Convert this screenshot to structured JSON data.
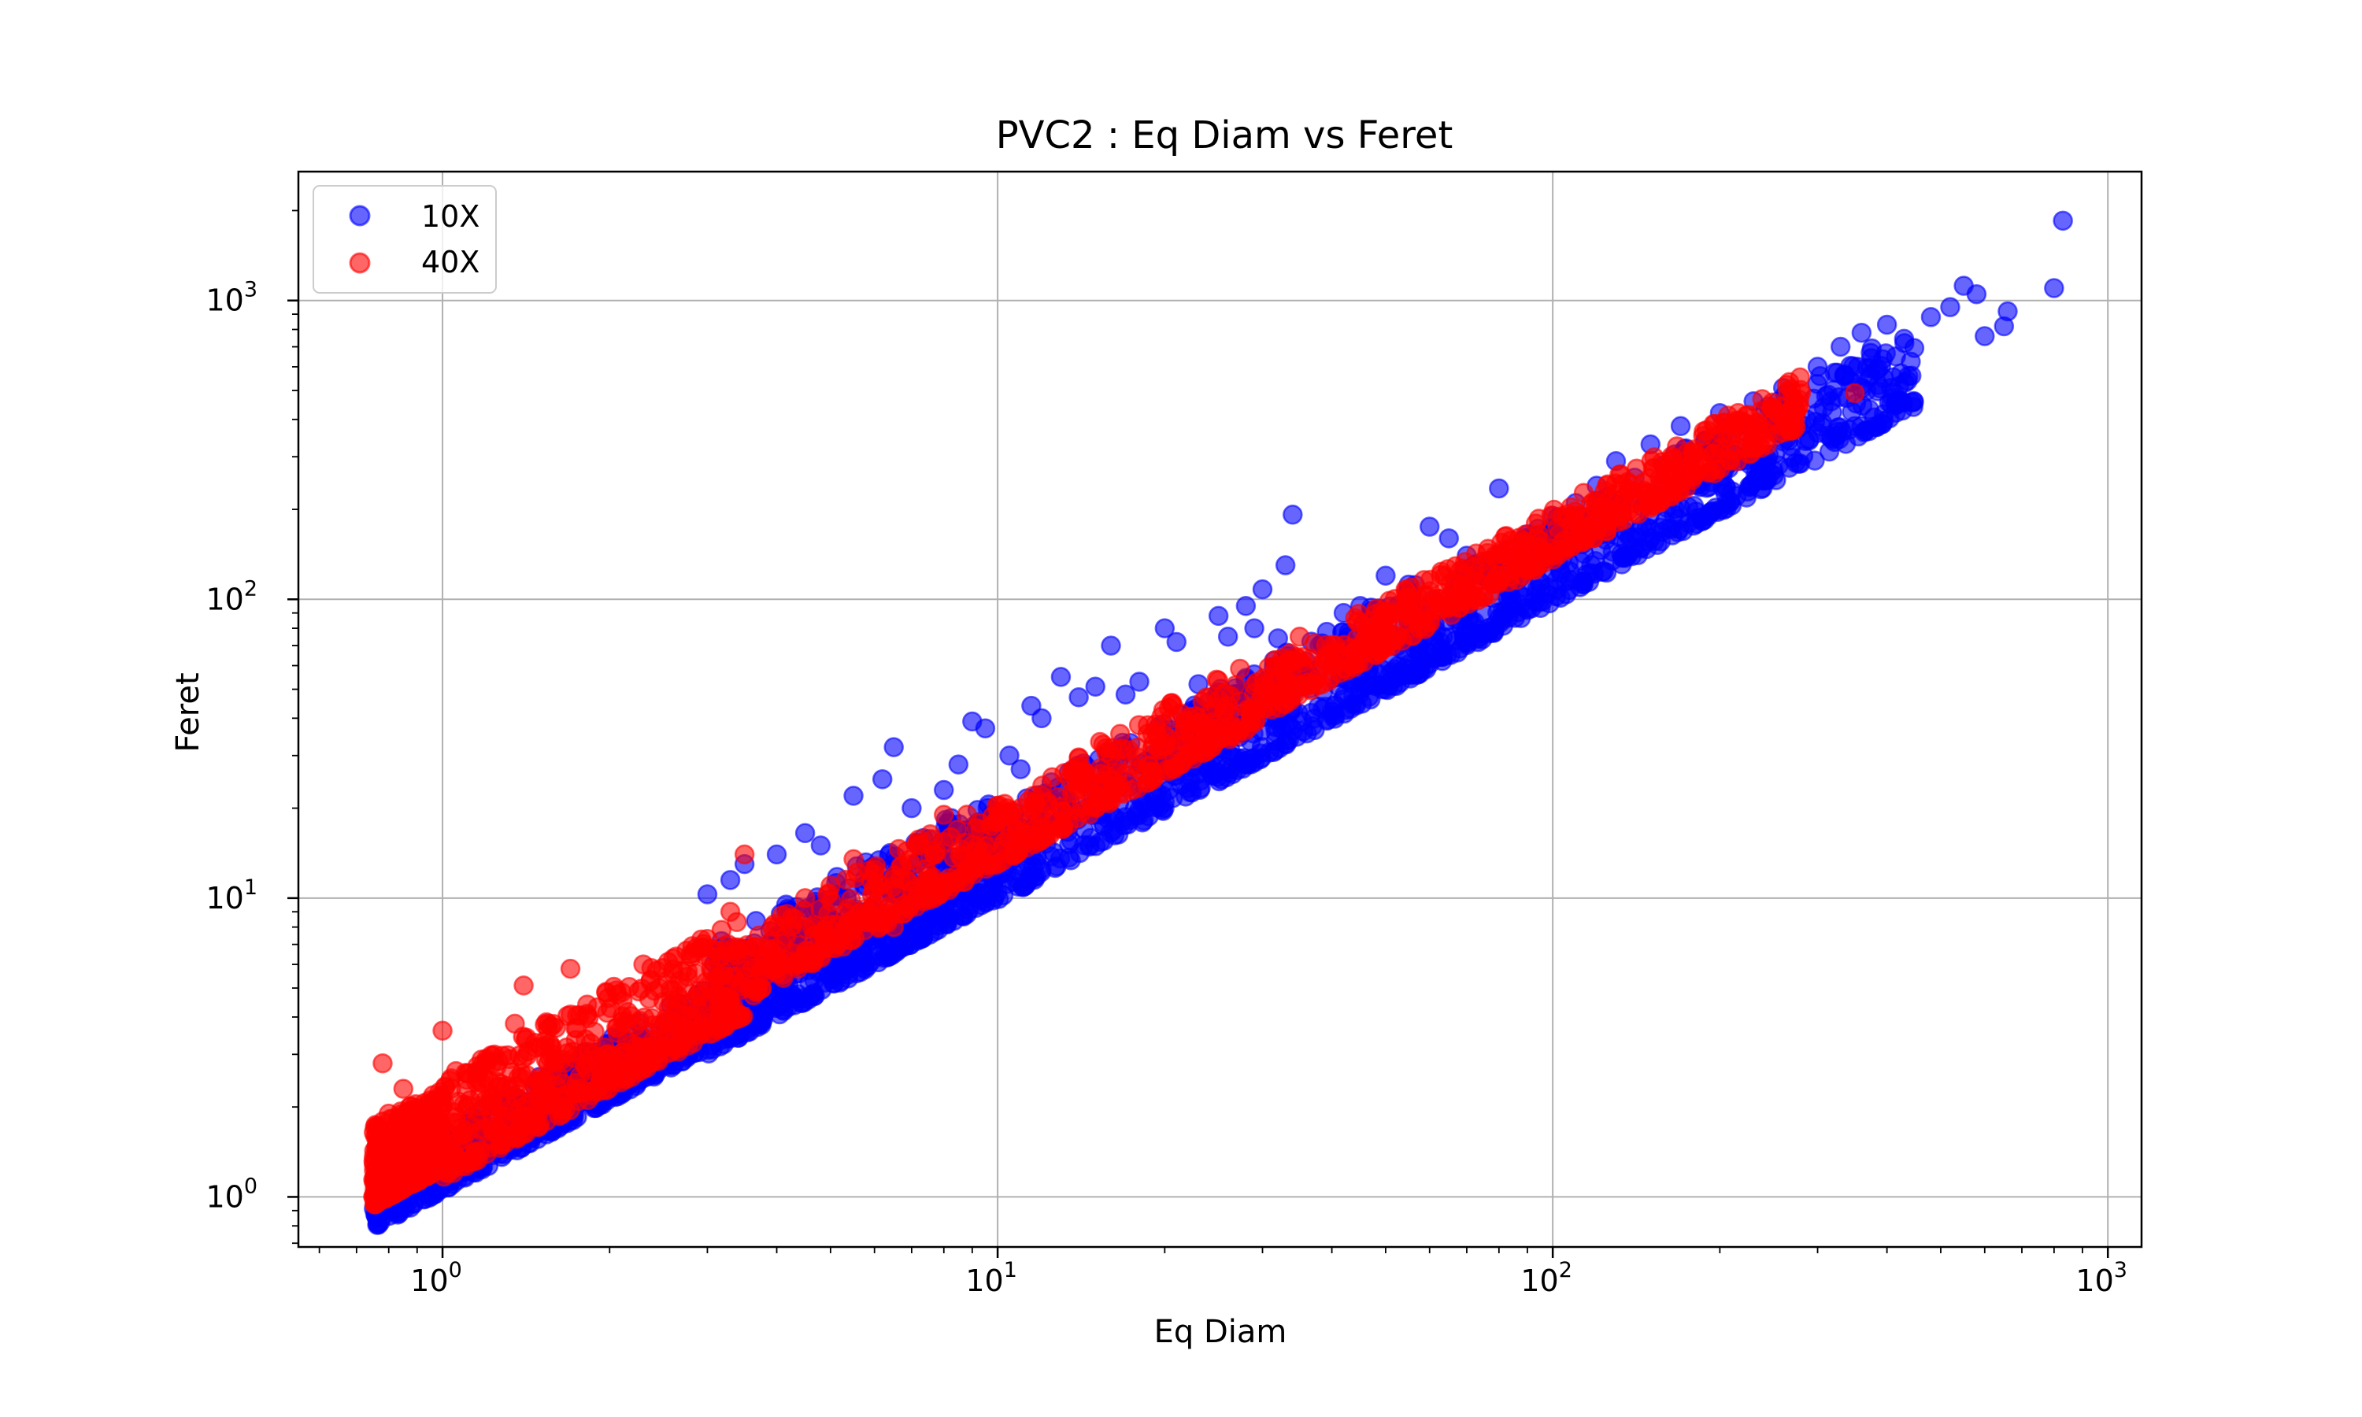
{
  "chart_data": {
    "type": "scatter",
    "title": "PVC2 : Eq Diam vs Feret",
    "xlabel": "Eq Diam",
    "ylabel": "Feret",
    "xscale": "log",
    "yscale": "log",
    "xlim": [
      0.55,
      1150
    ],
    "ylim": [
      0.68,
      2700
    ],
    "grid": true,
    "legend_position": "top-left",
    "x_ticks": [
      {
        "value": 1,
        "base": "10",
        "exp": "0"
      },
      {
        "value": 10,
        "base": "10",
        "exp": "1"
      },
      {
        "value": 100,
        "base": "10",
        "exp": "2"
      },
      {
        "value": 1000,
        "base": "10",
        "exp": "3"
      }
    ],
    "y_ticks": [
      {
        "value": 1,
        "base": "10",
        "exp": "0"
      },
      {
        "value": 10,
        "base": "10",
        "exp": "1"
      },
      {
        "value": 100,
        "base": "10",
        "exp": "2"
      },
      {
        "value": 1000,
        "base": "10",
        "exp": "3"
      }
    ],
    "series": [
      {
        "name": "10X",
        "color": "#0000ff",
        "points": [
          [
            3.0,
            10.3
          ],
          [
            3.3,
            11.5
          ],
          [
            3.5,
            13.0
          ],
          [
            4.0,
            14.0
          ],
          [
            4.5,
            16.5
          ],
          [
            4.8,
            15.0
          ],
          [
            5.5,
            22.0
          ],
          [
            6.2,
            25.0
          ],
          [
            6.5,
            32.0
          ],
          [
            7.0,
            20.0
          ],
          [
            8.0,
            23.0
          ],
          [
            8.5,
            28.0
          ],
          [
            9.0,
            39.0
          ],
          [
            9.5,
            37.0
          ],
          [
            10.0,
            18.0
          ],
          [
            10.5,
            30.0
          ],
          [
            11.0,
            27.0
          ],
          [
            11.5,
            44.0
          ],
          [
            12.0,
            40.0
          ],
          [
            13.0,
            55.0
          ],
          [
            14.0,
            47.0
          ],
          [
            15.0,
            51.0
          ],
          [
            16.0,
            70.0
          ],
          [
            17.0,
            48.0
          ],
          [
            18.0,
            53.0
          ],
          [
            20.0,
            80.0
          ],
          [
            21.0,
            72.0
          ],
          [
            23.0,
            52.0
          ],
          [
            25.0,
            88.0
          ],
          [
            26.0,
            75.0
          ],
          [
            28.0,
            95.0
          ],
          [
            29.0,
            80.0
          ],
          [
            30.0,
            108.0
          ],
          [
            32.0,
            74.0
          ],
          [
            33.0,
            130.0
          ],
          [
            34.0,
            192.0
          ],
          [
            38.0,
            70.0
          ],
          [
            42.0,
            90.0
          ],
          [
            45.0,
            95.0
          ],
          [
            50.0,
            120.0
          ],
          [
            55.0,
            112.0
          ],
          [
            60.0,
            175.0
          ],
          [
            65.0,
            160.0
          ],
          [
            70.0,
            140.0
          ],
          [
            80.0,
            235.0
          ],
          [
            90.0,
            165.0
          ],
          [
            100.0,
            190.0
          ],
          [
            110.0,
            210.0
          ],
          [
            120.0,
            240.0
          ],
          [
            130.0,
            290.0
          ],
          [
            150.0,
            330.0
          ],
          [
            170.0,
            380.0
          ],
          [
            200.0,
            420.0
          ],
          [
            230.0,
            460.0
          ],
          [
            260.0,
            510.0
          ],
          [
            300.0,
            600.0
          ],
          [
            330.0,
            700.0
          ],
          [
            360.0,
            780.0
          ],
          [
            400.0,
            830.0
          ],
          [
            430.0,
            720.0
          ],
          [
            480.0,
            880.0
          ],
          [
            520.0,
            950.0
          ],
          [
            550.0,
            1120.0
          ],
          [
            580.0,
            1050.0
          ],
          [
            600.0,
            760.0
          ],
          [
            650.0,
            820.0
          ],
          [
            660.0,
            920.0
          ],
          [
            800.0,
            1100.0
          ],
          [
            830.0,
            1850.0
          ],
          [
            12.0,
            12.5
          ],
          [
            20.0,
            21.0
          ],
          [
            40.0,
            42.0
          ],
          [
            70.0,
            72.0
          ],
          [
            150.0,
            160.0
          ],
          [
            250.0,
            270.0
          ],
          [
            350.0,
            380.0
          ],
          [
            5.0,
            5.6
          ],
          [
            8.0,
            8.8
          ]
        ],
        "bands": [
          {
            "x": [
              0.75,
              3.0
            ],
            "y_low_ratio": 1.05,
            "y_high_ratio": 1.7
          },
          {
            "x": [
              3.0,
              10.0
            ],
            "y_low_ratio": 1.0,
            "y_high_ratio": 2.3
          },
          {
            "x": [
              10.0,
              60.0
            ],
            "y_low_ratio": 0.98,
            "y_high_ratio": 2.0
          },
          {
            "x": [
              60.0,
              450.0
            ],
            "y_low_ratio": 0.98,
            "y_high_ratio": 1.85
          }
        ]
      },
      {
        "name": "40X",
        "color": "#ff0000",
        "points": [
          [
            0.75,
            1.0
          ],
          [
            0.78,
            2.8
          ],
          [
            0.8,
            1.9
          ],
          [
            0.85,
            2.3
          ],
          [
            0.9,
            1.2
          ],
          [
            1.0,
            2.0
          ],
          [
            1.0,
            3.6
          ],
          [
            1.05,
            1.4
          ],
          [
            1.1,
            2.6
          ],
          [
            1.2,
            2.9
          ],
          [
            1.35,
            3.8
          ],
          [
            1.4,
            5.1
          ],
          [
            1.5,
            2.5
          ],
          [
            1.7,
            5.8
          ],
          [
            2.0,
            2.8
          ],
          [
            2.3,
            6.0
          ],
          [
            2.5,
            4.5
          ],
          [
            2.8,
            6.5
          ],
          [
            3.0,
            7.3
          ],
          [
            3.3,
            9.0
          ],
          [
            3.5,
            14.0
          ],
          [
            4.0,
            8.0
          ],
          [
            4.5,
            10.0
          ],
          [
            5.0,
            11.0
          ],
          [
            5.5,
            13.5
          ],
          [
            6.0,
            12.0
          ],
          [
            7.0,
            13.0
          ],
          [
            8.0,
            19.0
          ],
          [
            9.0,
            15.0
          ],
          [
            10.0,
            18.0
          ],
          [
            11.0,
            20.0
          ],
          [
            12.0,
            22.0
          ],
          [
            14.0,
            24.0
          ],
          [
            16.0,
            30.0
          ],
          [
            18.0,
            27.0
          ],
          [
            20.0,
            35.0
          ],
          [
            23.0,
            40.0
          ],
          [
            26.0,
            44.0
          ],
          [
            30.0,
            48.0
          ],
          [
            35.0,
            75.0
          ],
          [
            38.0,
            58.0
          ],
          [
            45.0,
            70.0
          ],
          [
            50.0,
            90.0
          ],
          [
            60.0,
            85.0
          ],
          [
            70.0,
            105.0
          ],
          [
            80.0,
            120.0
          ],
          [
            90.0,
            130.0
          ],
          [
            100.0,
            140.0
          ],
          [
            120.0,
            170.0
          ],
          [
            140.0,
            210.0
          ],
          [
            160.0,
            260.0
          ],
          [
            200.0,
            320.0
          ],
          [
            230.0,
            330.0
          ],
          [
            260.0,
            380.0
          ],
          [
            280.0,
            490.0
          ],
          [
            350.0,
            490.0
          ],
          [
            25.0,
            35.0
          ],
          [
            15.0,
            22.0
          ],
          [
            40.0,
            60.0
          ],
          [
            6.5,
            8.0
          ]
        ],
        "bands": [
          {
            "x": [
              0.75,
              1.0
            ],
            "y_low_ratio": 1.25,
            "y_high_ratio": 2.3
          },
          {
            "x": [
              1.0,
              3.5
            ],
            "y_low_ratio": 1.15,
            "y_high_ratio": 2.5
          },
          {
            "x": [
              3.5,
              30.0
            ],
            "y_low_ratio": 1.3,
            "y_high_ratio": 2.2
          },
          {
            "x": [
              30.0,
              280.0
            ],
            "y_low_ratio": 1.35,
            "y_high_ratio": 2.0
          }
        ]
      }
    ]
  }
}
